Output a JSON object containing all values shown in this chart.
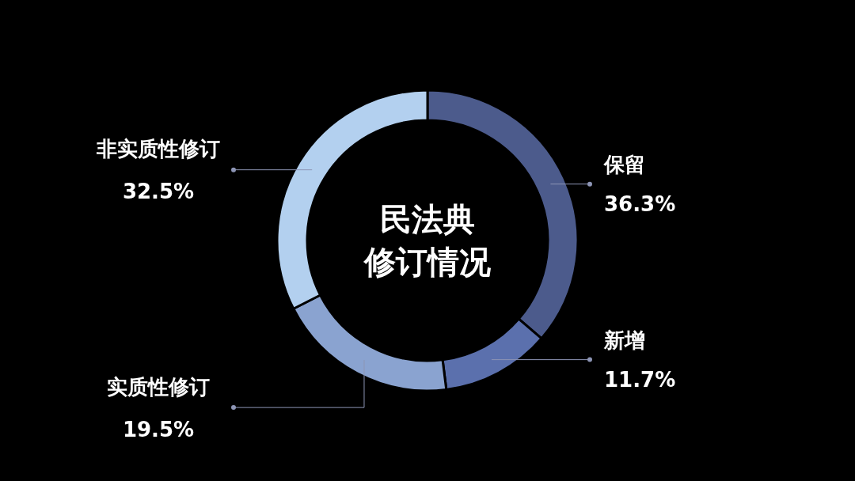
{
  "chart_data": {
    "type": "donut",
    "title": "民法典修订情况",
    "categories": [
      "保留",
      "新增",
      "实质性修订",
      "非实质性修订"
    ],
    "values": [
      36.3,
      11.7,
      19.5,
      32.5
    ],
    "value_labels": [
      "36.3%",
      "11.7%",
      "19.5%",
      "32.5%"
    ],
    "colors": [
      "#4c5b8c",
      "#5b70ad",
      "#8aa3d0",
      "#b3d0ef"
    ],
    "legend": false
  }
}
